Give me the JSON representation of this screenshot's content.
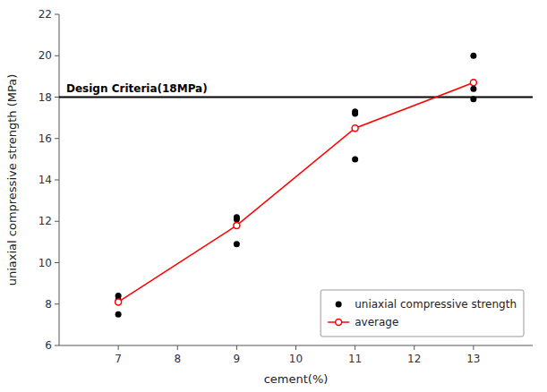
{
  "chart_data": {
    "type": "scatter",
    "xlabel": "cement(%)",
    "ylabel": "uniaxial compressive strength (MPa)",
    "xlim": [
      6,
      14
    ],
    "ylim": [
      6,
      22
    ],
    "xticks": [
      7,
      8,
      9,
      10,
      11,
      12,
      13
    ],
    "yticks": [
      6,
      8,
      10,
      12,
      14,
      16,
      18,
      20,
      22
    ],
    "grid": false,
    "legend": "lower right",
    "series": [
      {
        "name": "uniaxial compressive strength",
        "type": "scatter",
        "color": "#000000",
        "marker": "circle",
        "x": [
          7,
          7,
          7,
          9,
          9,
          9,
          11,
          11,
          11,
          13,
          13,
          13
        ],
        "values": [
          7.5,
          8.4,
          8.2,
          10.9,
          12.1,
          12.2,
          15.0,
          17.2,
          17.3,
          17.9,
          18.4,
          20.0
        ]
      },
      {
        "name": "average",
        "type": "line",
        "color": "#ff0000",
        "marker": "circle",
        "x": [
          7,
          9,
          11,
          13
        ],
        "values": [
          8.1,
          11.8,
          16.5,
          18.7
        ]
      }
    ],
    "reference_lines": [
      {
        "value": 18.0,
        "label": "Design Criteria(18MPa)",
        "color": "#000000"
      }
    ]
  }
}
